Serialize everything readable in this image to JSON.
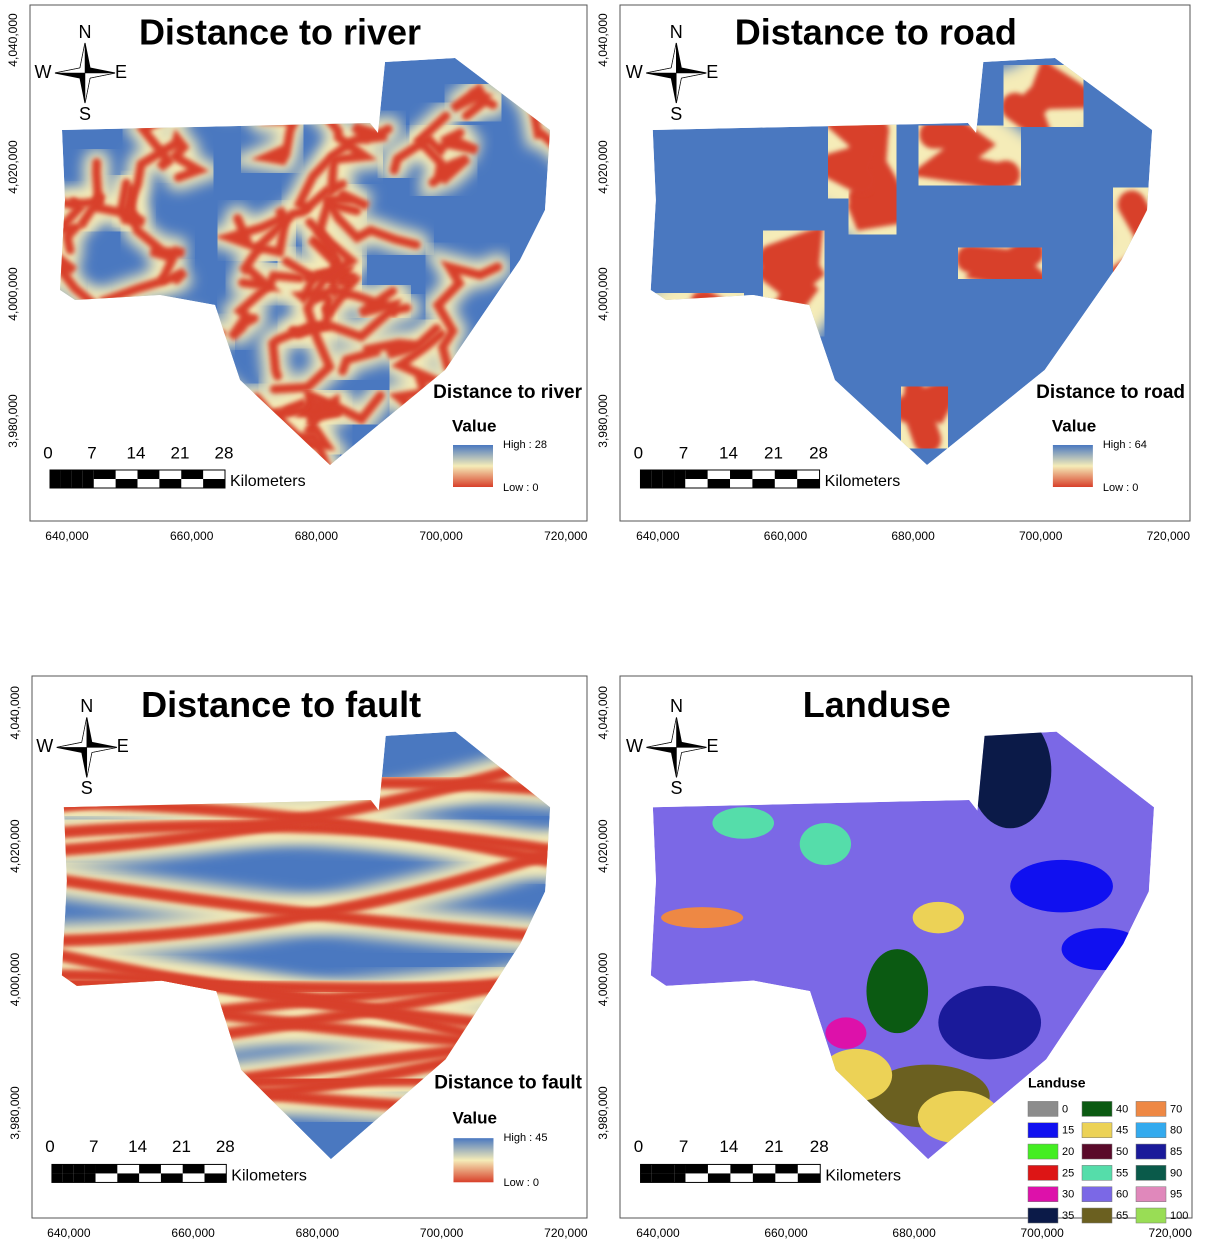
{
  "compass": {
    "n": "N",
    "s": "S",
    "e": "E",
    "w": "W"
  },
  "x_ticks": [
    "640,000",
    "660,000",
    "680,000",
    "700,000",
    "720,000"
  ],
  "y_ticks": [
    "4,040,000",
    "4,020,000",
    "4,000,000",
    "3,980,000"
  ],
  "scale_bar": {
    "labels": [
      "0",
      "7",
      "14",
      "21",
      "28"
    ],
    "unit": "Kilometers"
  },
  "panels": [
    {
      "title": "Distance to river",
      "legend_title": "Distance to river",
      "value_label": "Value",
      "high": "High : 28",
      "low": "Low : 0"
    },
    {
      "title": "Distance to road",
      "legend_title": "Distance to road",
      "value_label": "Value",
      "high": "High : 64",
      "low": "Low : 0"
    },
    {
      "title": "Distance to fault",
      "legend_title": "Distance to fault",
      "value_label": "Value",
      "high": "High : 45",
      "low": "Low : 0"
    },
    {
      "title": "Landuse",
      "legend_title": "Landuse",
      "classes": [
        {
          "label": "0",
          "color": "#8c8c8c"
        },
        {
          "label": "15",
          "color": "#1010f0"
        },
        {
          "label": "20",
          "color": "#44ee22"
        },
        {
          "label": "25",
          "color": "#dd1515"
        },
        {
          "label": "30",
          "color": "#dd11aa"
        },
        {
          "label": "35",
          "color": "#0b1a48"
        },
        {
          "label": "40",
          "color": "#0b5a12"
        },
        {
          "label": "45",
          "color": "#ecd256"
        },
        {
          "label": "50",
          "color": "#5a0a2a"
        },
        {
          "label": "55",
          "color": "#55ddaa"
        },
        {
          "label": "60",
          "color": "#7b68e6"
        },
        {
          "label": "65",
          "color": "#6b6020"
        },
        {
          "label": "70",
          "color": "#ee8844"
        },
        {
          "label": "80",
          "color": "#33aaee"
        },
        {
          "label": "85",
          "color": "#1a1a9a"
        },
        {
          "label": "90",
          "color": "#0a5a4a"
        },
        {
          "label": "95",
          "color": "#e088bb"
        },
        {
          "label": "100",
          "color": "#99dd55"
        }
      ]
    }
  ]
}
